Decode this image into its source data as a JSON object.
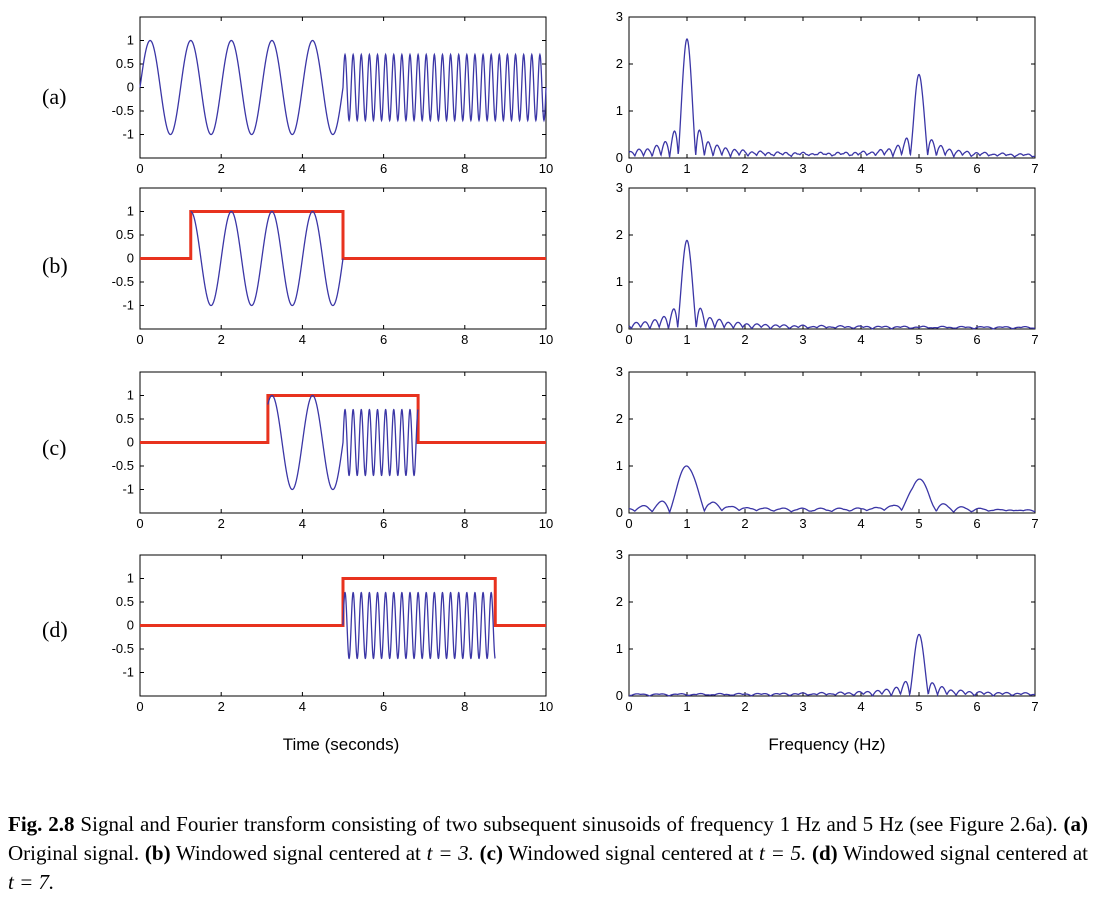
{
  "figure": {
    "row_labels": [
      "(a)",
      "(b)",
      "(c)",
      "(d)"
    ],
    "time_axis_title": "Time (seconds)",
    "freq_axis_title": "Frequency (Hz)"
  },
  "caption": {
    "fig_label": "Fig. 2.8",
    "p1": " Signal and Fourier transform consisting of two subsequent sinusoids of frequency 1 Hz and 5 Hz (see Figure 2.6a). ",
    "a_label": "(a)",
    "a_text": " Original signal. ",
    "b_label": "(b)",
    "b_text": " Windowed signal centered at ",
    "b_eq": "t = 3.",
    "c_label": "(c)",
    "c_text": " Windowed signal centered at ",
    "c_eq": "t = 5.",
    "d_label": "(d)",
    "d_text": " Windowed signal centered at ",
    "d_eq": "t = 7."
  },
  "colors": {
    "signal": "#3b36a6",
    "window": "#e8321e",
    "axis": "#000000"
  },
  "chart_data": [
    {
      "id": "a-time",
      "type": "line",
      "xlim": [
        0,
        10
      ],
      "ylim": [
        -1.5,
        1.5
      ],
      "xticks": [
        0,
        2,
        4,
        6,
        8,
        10
      ],
      "yticks": [
        1,
        0.5,
        0,
        -0.5,
        -1
      ],
      "xticklabels": [
        "0",
        "2",
        "4",
        "6",
        "8",
        "10"
      ],
      "yticklabels": [
        "1",
        "0.5",
        "0",
        "-0.5",
        "-1"
      ],
      "signal": {
        "segments": [
          {
            "t0": 0,
            "t1": 5,
            "freq": 1,
            "amp": 1
          },
          {
            "t0": 5,
            "t1": 10,
            "freq": 5,
            "amp": 0.7
          }
        ]
      },
      "window": null
    },
    {
      "id": "a-freq",
      "type": "line",
      "xlim": [
        0,
        7
      ],
      "ylim": [
        0,
        3
      ],
      "xticks": [
        0,
        1,
        2,
        3,
        4,
        5,
        6,
        7
      ],
      "yticks": [
        0,
        1,
        2,
        3
      ],
      "xticklabels": [
        "0",
        "1",
        "2",
        "3",
        "4",
        "5",
        "6",
        "7"
      ],
      "yticklabels": [
        "0",
        "1",
        "2",
        "3"
      ],
      "peaks": [
        {
          "freq": 1,
          "height": 2.5
        },
        {
          "freq": 5,
          "height": 1.72
        }
      ],
      "ripple": 0.1,
      "lobe_width": 0.15
    },
    {
      "id": "b-time",
      "type": "line",
      "xlim": [
        0,
        10
      ],
      "ylim": [
        -1.5,
        1.5
      ],
      "xticks": [
        0,
        2,
        4,
        6,
        8,
        10
      ],
      "yticks": [
        1,
        0.5,
        0,
        -0.5,
        -1
      ],
      "xticklabels": [
        "0",
        "2",
        "4",
        "6",
        "8",
        "10"
      ],
      "yticklabels": [
        "1",
        "0.5",
        "0",
        "-0.5",
        "-1"
      ],
      "signal": {
        "segments": [
          {
            "t0": 1.25,
            "t1": 5,
            "freq": 1,
            "amp": 1
          }
        ]
      },
      "window": {
        "t0": 1.25,
        "t1": 5,
        "level": 1
      }
    },
    {
      "id": "b-freq",
      "type": "line",
      "xlim": [
        0,
        7
      ],
      "ylim": [
        0,
        3
      ],
      "xticks": [
        0,
        1,
        2,
        3,
        4,
        5,
        6,
        7
      ],
      "yticks": [
        0,
        1,
        2,
        3
      ],
      "xticklabels": [
        "0",
        "1",
        "2",
        "3",
        "4",
        "5",
        "6",
        "7"
      ],
      "yticklabels": [
        "0",
        "1",
        "2",
        "3"
      ],
      "peaks": [
        {
          "freq": 1,
          "height": 1.87
        }
      ],
      "ripple": 0.1,
      "lobe_width": 0.16
    },
    {
      "id": "c-time",
      "type": "line",
      "xlim": [
        0,
        10
      ],
      "ylim": [
        -1.5,
        1.5
      ],
      "xticks": [
        0,
        2,
        4,
        6,
        8,
        10
      ],
      "yticks": [
        1,
        0.5,
        0,
        -0.5,
        -1
      ],
      "xticklabels": [
        "0",
        "2",
        "4",
        "6",
        "8",
        "10"
      ],
      "yticklabels": [
        "1",
        "0.5",
        "0",
        "-0.5",
        "-1"
      ],
      "signal": {
        "segments": [
          {
            "t0": 3.15,
            "t1": 5,
            "freq": 1,
            "amp": 1
          },
          {
            "t0": 5,
            "t1": 6.85,
            "freq": 5,
            "amp": 0.7
          }
        ]
      },
      "window": {
        "t0": 3.15,
        "t1": 6.85,
        "level": 1
      }
    },
    {
      "id": "c-freq",
      "type": "line",
      "xlim": [
        0,
        7
      ],
      "ylim": [
        0,
        3
      ],
      "xticks": [
        0,
        1,
        2,
        3,
        4,
        5,
        6,
        7
      ],
      "yticks": [
        0,
        1,
        2,
        3
      ],
      "xticklabels": [
        "0",
        "1",
        "2",
        "3",
        "4",
        "5",
        "6",
        "7"
      ],
      "yticklabels": [
        "0",
        "1",
        "2",
        "3"
      ],
      "peaks": [
        {
          "freq": 1,
          "height": 0.97
        },
        {
          "freq": 5,
          "height": 0.67
        }
      ],
      "ripple": 0.1,
      "lobe_width": 0.3
    },
    {
      "id": "d-time",
      "type": "line",
      "xlim": [
        0,
        10
      ],
      "ylim": [
        -1.5,
        1.5
      ],
      "xticks": [
        0,
        2,
        4,
        6,
        8,
        10
      ],
      "yticks": [
        1,
        0.5,
        0,
        -0.5,
        -1
      ],
      "xticklabels": [
        "0",
        "2",
        "4",
        "6",
        "8",
        "10"
      ],
      "yticklabels": [
        "1",
        "0.5",
        "0",
        "-0.5",
        "-1"
      ],
      "signal": {
        "segments": [
          {
            "t0": 5,
            "t1": 8.75,
            "freq": 5,
            "amp": 0.7
          }
        ]
      },
      "window": {
        "t0": 5,
        "t1": 8.75,
        "level": 1
      }
    },
    {
      "id": "d-freq",
      "type": "line",
      "xlim": [
        0,
        7
      ],
      "ylim": [
        0,
        3
      ],
      "xticks": [
        0,
        1,
        2,
        3,
        4,
        5,
        6,
        7
      ],
      "yticks": [
        0,
        1,
        2,
        3
      ],
      "xticklabels": [
        "0",
        "1",
        "2",
        "3",
        "4",
        "5",
        "6",
        "7"
      ],
      "yticklabels": [
        "0",
        "1",
        "2",
        "3"
      ],
      "peaks": [
        {
          "freq": 5,
          "height": 1.28
        }
      ],
      "ripple": 0.1,
      "lobe_width": 0.16
    }
  ]
}
